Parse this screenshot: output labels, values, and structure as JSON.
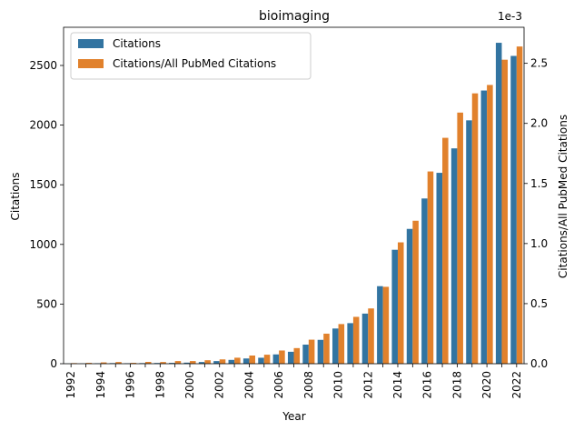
{
  "chart_data": {
    "type": "bar",
    "title": "bioimaging",
    "xlabel": "Year",
    "ylabel": "Citations",
    "ylabel_right": "Citations/All PubMed Citations",
    "right_axis_offset_text": "1e-3",
    "categories": [
      "1992",
      "1993",
      "1994",
      "1995",
      "1996",
      "1997",
      "1998",
      "1999",
      "2000",
      "2001",
      "2002",
      "2003",
      "2004",
      "2005",
      "2006",
      "2007",
      "2008",
      "2009",
      "2010",
      "2011",
      "2012",
      "2013",
      "2014",
      "2015",
      "2016",
      "2017",
      "2018",
      "2019",
      "2020",
      "2021",
      "2022"
    ],
    "x_tick_labels": [
      "1992",
      "1994",
      "1996",
      "1998",
      "2000",
      "2002",
      "2004",
      "2006",
      "2008",
      "2010",
      "2012",
      "2014",
      "2016",
      "2018",
      "2020",
      "2022"
    ],
    "ylim": [
      0,
      2820
    ],
    "ylim_right": [
      0,
      2.8
    ],
    "y_ticks": [
      0,
      500,
      1000,
      1500,
      2000,
      2500
    ],
    "y_ticks_right": [
      "0.0",
      "0.5",
      "1.0",
      "1.5",
      "2.0",
      "2.5"
    ],
    "legend_position": "upper-left",
    "series": [
      {
        "name": "Citations",
        "axis": "left",
        "color": "#3274a1",
        "values": [
          1,
          2,
          4,
          5,
          4,
          5,
          6,
          7,
          9,
          14,
          22,
          32,
          44,
          50,
          78,
          100,
          160,
          200,
          295,
          340,
          420,
          650,
          955,
          1130,
          1385,
          1600,
          1805,
          2040,
          2290,
          2690,
          2580
        ]
      },
      {
        "name": "Citations/All PubMed Citations",
        "axis": "right",
        "color": "#e1812c",
        "values": [
          0.005,
          0.007,
          0.011,
          0.014,
          0.007,
          0.015,
          0.014,
          0.022,
          0.022,
          0.029,
          0.036,
          0.05,
          0.068,
          0.075,
          0.11,
          0.13,
          0.2,
          0.25,
          0.33,
          0.39,
          0.46,
          0.64,
          1.01,
          1.19,
          1.6,
          1.88,
          2.09,
          2.25,
          2.32,
          2.53,
          2.64
        ]
      }
    ],
    "colors": {
      "citations": "#3274a1",
      "ratio": "#e1812c"
    }
  }
}
